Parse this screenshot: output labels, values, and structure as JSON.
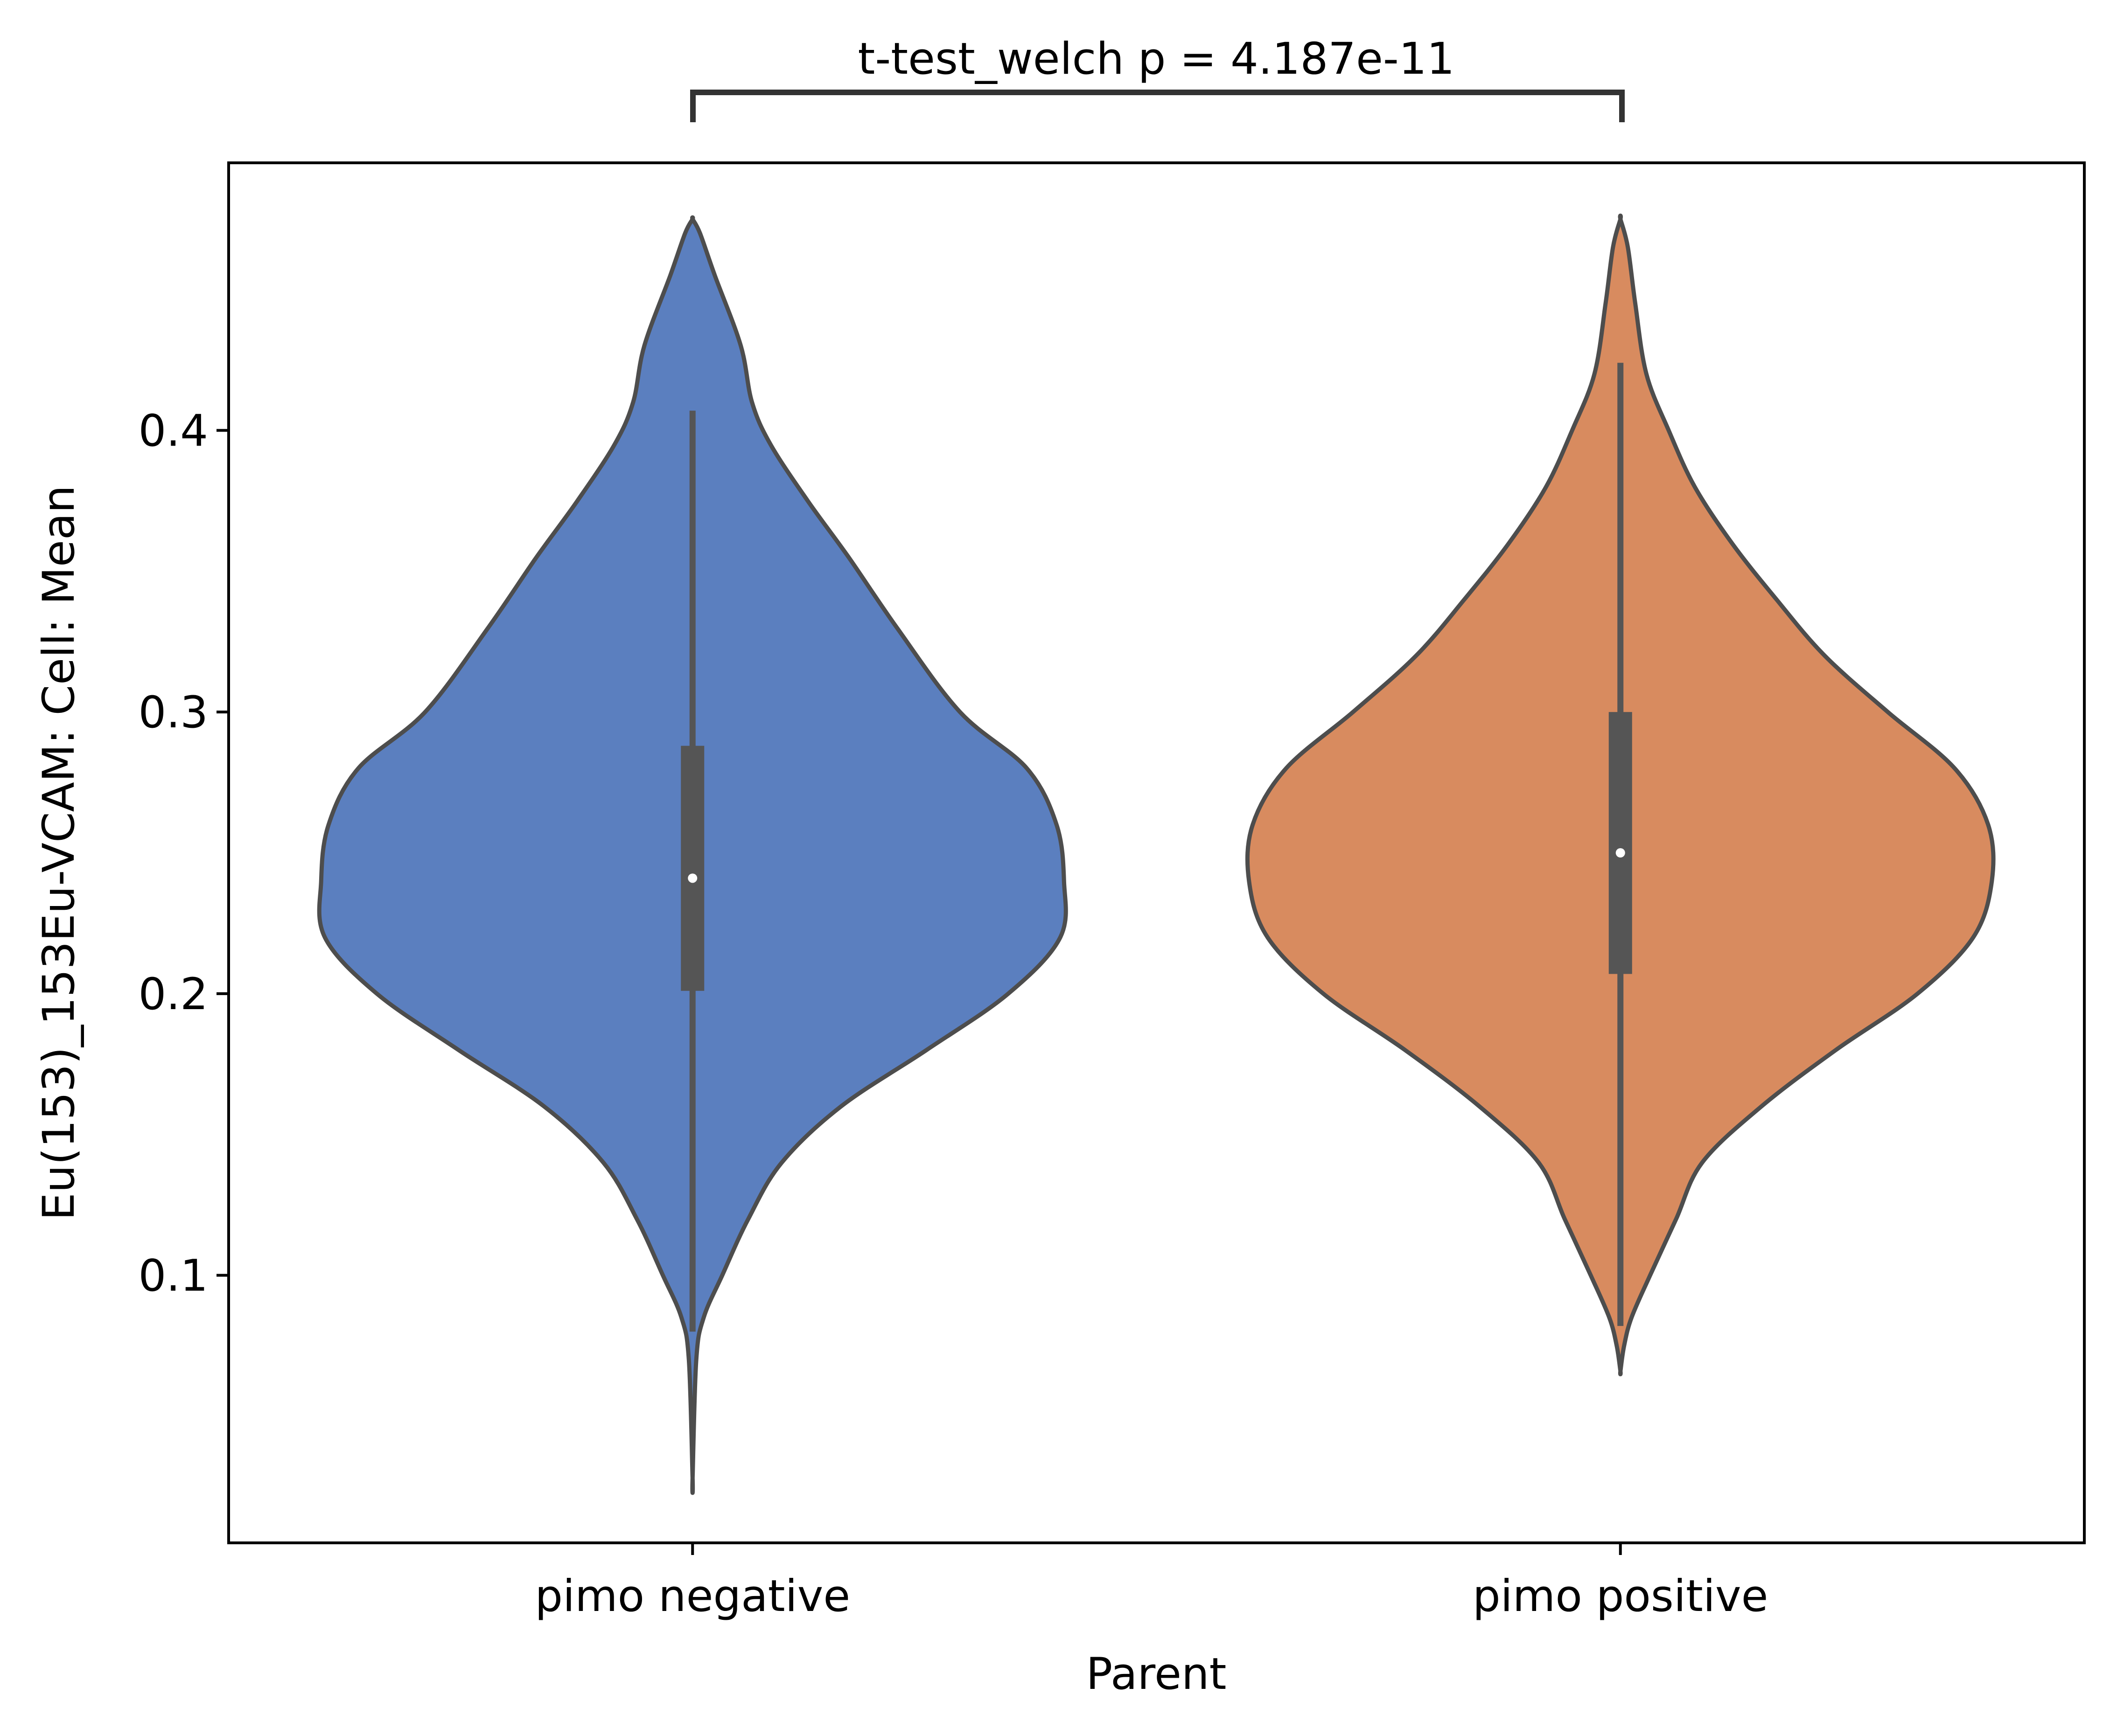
{
  "chart_data": {
    "type": "violin",
    "xlabel": "Parent",
    "ylabel": "Eu(153)_153Eu-VCAM: Cell: Mean",
    "categories": [
      "pimo negative",
      "pimo positive"
    ],
    "ylim": [
      0.005,
      0.495
    ],
    "yticks": [
      0.1,
      0.2,
      0.3,
      0.4
    ],
    "ytick_labels": [
      "0.1",
      "0.2",
      "0.3",
      "0.4"
    ],
    "grid": false,
    "annotation": "t-test_welch p = 4.187e-11",
    "colors": {
      "pimo negative": "#5b7fbf",
      "pimo positive": "#d88b5f",
      "outline": "#4d4d4d",
      "inner_box": "#555555",
      "median_marker": "#ffffff",
      "axes": "#000000"
    },
    "series": [
      {
        "category": "pimo negative",
        "min": 0.028,
        "q1": 0.201,
        "median": 0.241,
        "q3": 0.288,
        "whisker_low": 0.08,
        "whisker_high": 0.407,
        "max": 0.475,
        "density_profile": [
          [
            0.475,
            0.0
          ],
          [
            0.47,
            0.02
          ],
          [
            0.455,
            0.06
          ],
          [
            0.43,
            0.13
          ],
          [
            0.41,
            0.16
          ],
          [
            0.395,
            0.21
          ],
          [
            0.375,
            0.31
          ],
          [
            0.355,
            0.42
          ],
          [
            0.33,
            0.55
          ],
          [
            0.3,
            0.72
          ],
          [
            0.28,
            0.9
          ],
          [
            0.26,
            0.98
          ],
          [
            0.24,
            1.0
          ],
          [
            0.22,
            0.99
          ],
          [
            0.2,
            0.85
          ],
          [
            0.18,
            0.63
          ],
          [
            0.16,
            0.4
          ],
          [
            0.14,
            0.24
          ],
          [
            0.12,
            0.15
          ],
          [
            0.1,
            0.08
          ],
          [
            0.085,
            0.03
          ],
          [
            0.07,
            0.01
          ],
          [
            0.028,
            0.0
          ]
        ]
      },
      {
        "category": "pimo positive",
        "min": 0.066,
        "q1": 0.207,
        "median": 0.25,
        "q3": 0.3,
        "whisker_low": 0.082,
        "whisker_high": 0.424,
        "max": 0.475,
        "density_profile": [
          [
            0.475,
            0.0
          ],
          [
            0.465,
            0.02
          ],
          [
            0.445,
            0.04
          ],
          [
            0.42,
            0.07
          ],
          [
            0.4,
            0.13
          ],
          [
            0.38,
            0.2
          ],
          [
            0.36,
            0.3
          ],
          [
            0.34,
            0.42
          ],
          [
            0.32,
            0.55
          ],
          [
            0.3,
            0.72
          ],
          [
            0.28,
            0.9
          ],
          [
            0.26,
            0.99
          ],
          [
            0.24,
            1.0
          ],
          [
            0.22,
            0.95
          ],
          [
            0.2,
            0.8
          ],
          [
            0.18,
            0.58
          ],
          [
            0.16,
            0.38
          ],
          [
            0.14,
            0.22
          ],
          [
            0.12,
            0.15
          ],
          [
            0.1,
            0.08
          ],
          [
            0.085,
            0.03
          ],
          [
            0.075,
            0.01
          ],
          [
            0.066,
            0.0
          ]
        ]
      }
    ]
  }
}
